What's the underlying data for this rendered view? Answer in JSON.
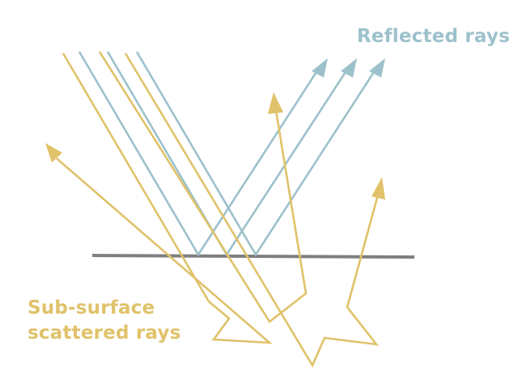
{
  "labels": {
    "reflected": "Reflected rays",
    "subsurface_line1": "Sub-surface",
    "subsurface_line2": "scattered rays"
  },
  "colors": {
    "reflected": "#9dc1cb",
    "subsurface": "#e0c26a",
    "surface": "#7f7f7f"
  },
  "icons": {
    "reflected_arrowheads": "triangle-arrowhead",
    "subsurface_arrowheads": "triangle-arrowhead"
  }
}
